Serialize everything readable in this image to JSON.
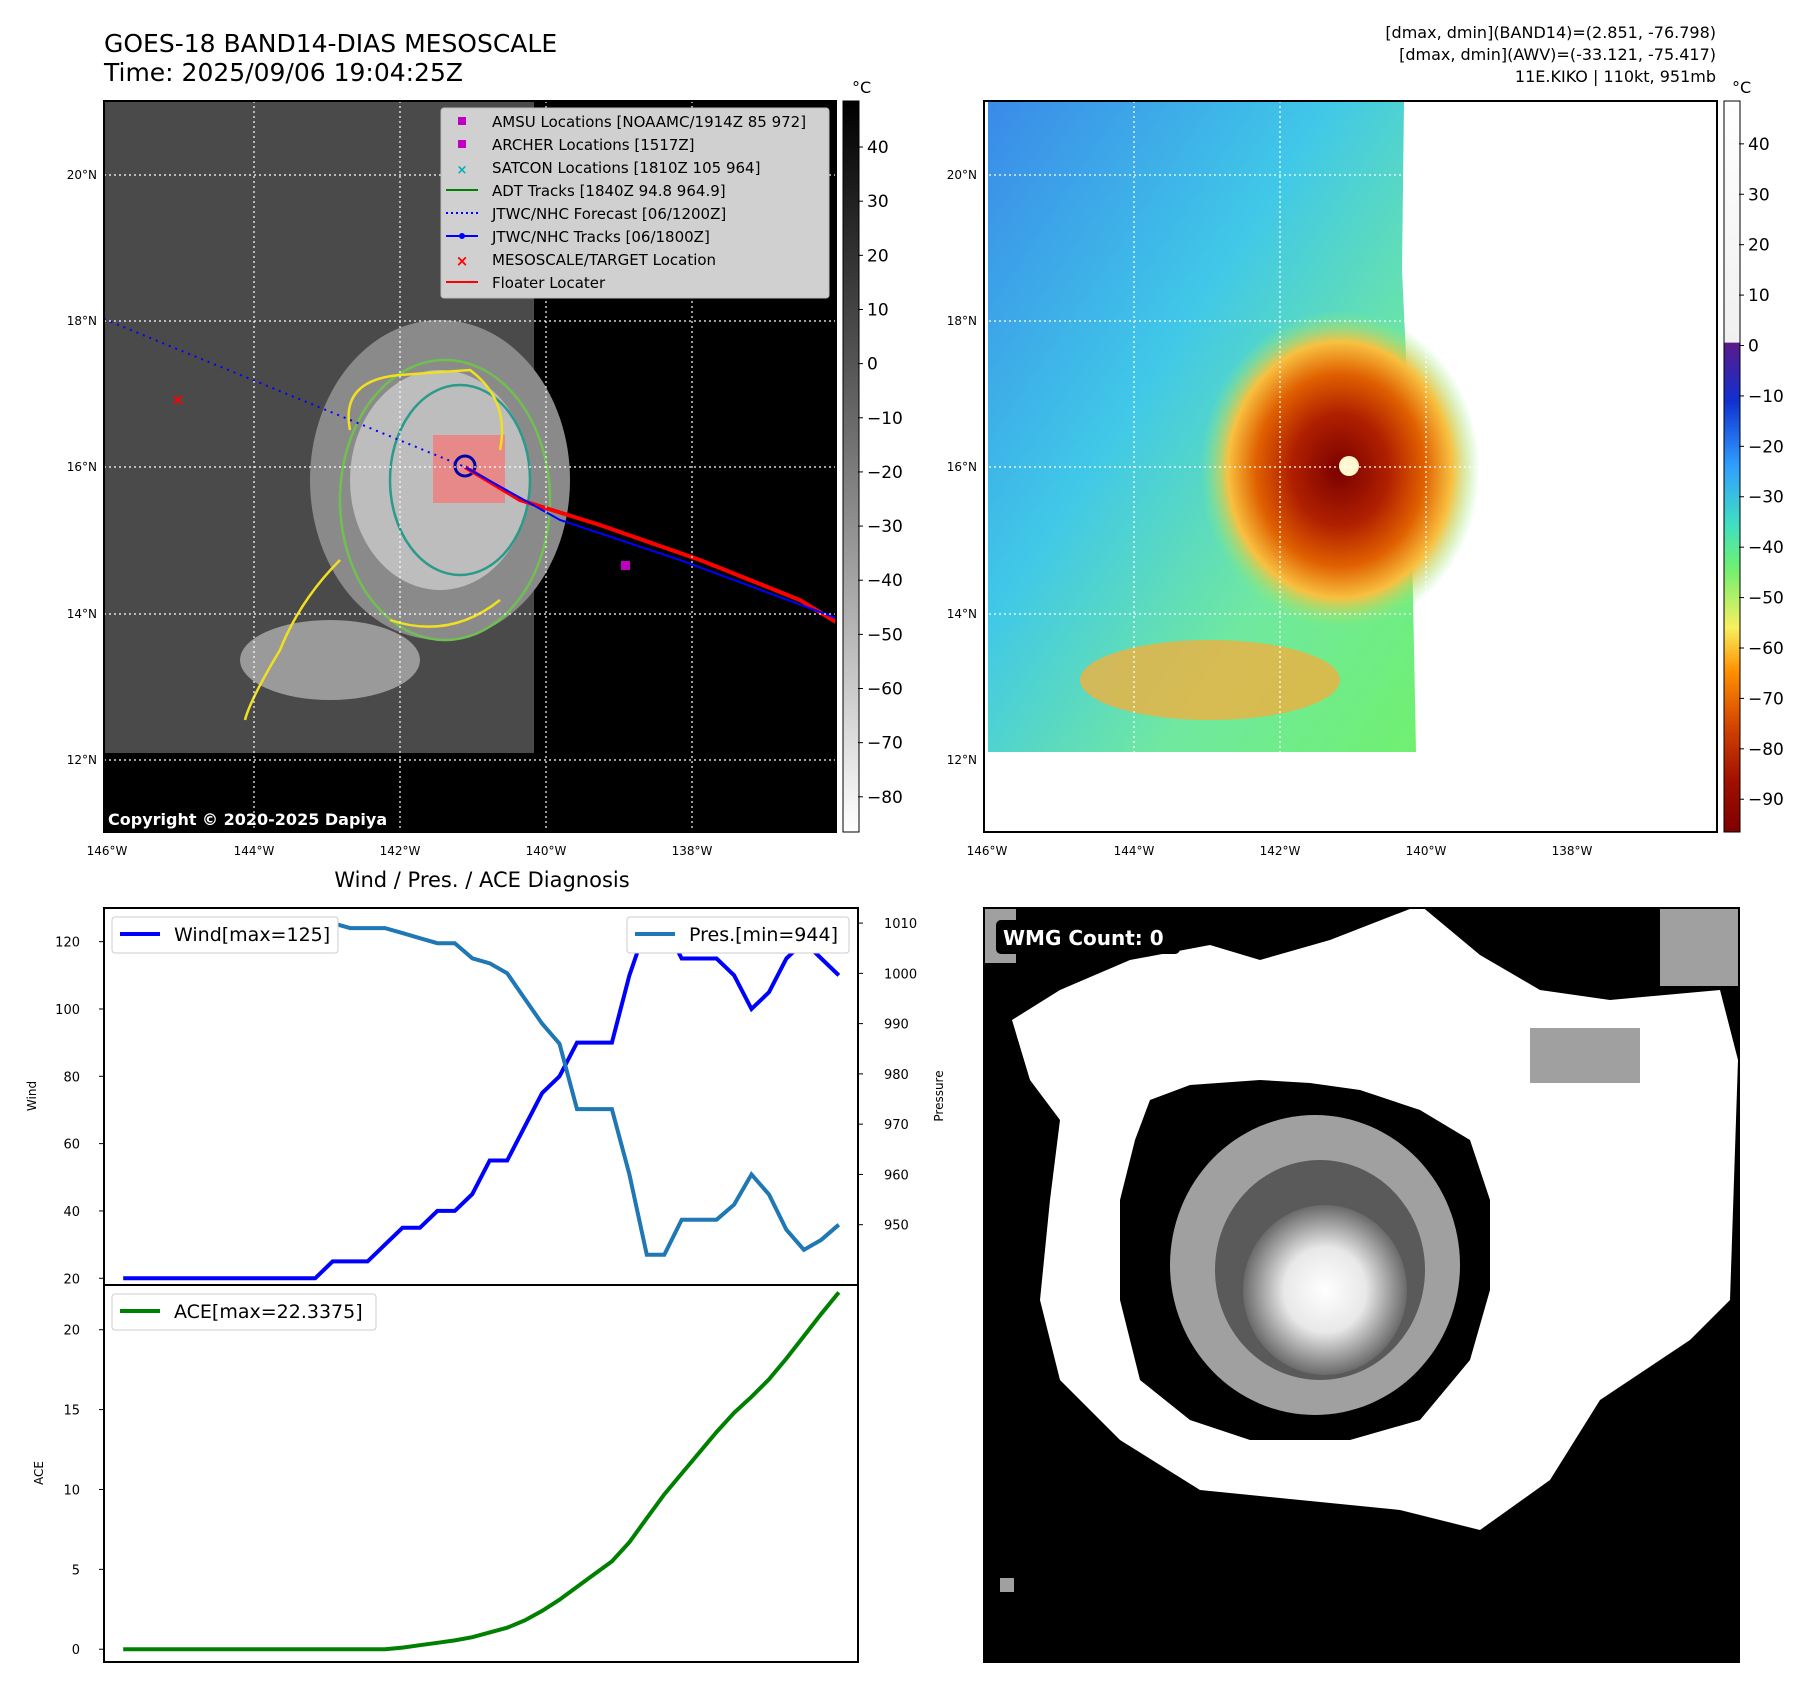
{
  "header": {
    "title": "GOES-18 BAND14-DIAS MESOSCALE",
    "time": "Time: 2025/09/06 19:04:25Z",
    "stats_line1": "[dmax, dmin](BAND14)=(2.851, -76.798)",
    "stats_line2": "[dmax, dmin](AWV)=(-33.121, -75.417)",
    "storm_line": "11E.KIKO | 110kt, 951mb"
  },
  "map_panel": {
    "copyright": "Copyright © 2020-2025 Dapiya",
    "lat_labels": [
      "20°N",
      "18°N",
      "16°N",
      "14°N",
      "12°N"
    ],
    "lon_labels": [
      "146°W",
      "144°W",
      "142°W",
      "140°W",
      "138°W"
    ],
    "legend": [
      {
        "label": "AMSU Locations [NOAAMC/1914Z 85 972]",
        "color": "#c000c0",
        "marker": "square"
      },
      {
        "label": "ARCHER Locations [1517Z]",
        "color": "#c000c0",
        "marker": "square"
      },
      {
        "label": "SATCON Locations [1810Z 105 964]",
        "color": "#00b0b0",
        "marker": "x"
      },
      {
        "label": "ADT Tracks [1840Z 94.8 964.9]",
        "color": "#008000",
        "marker": "line"
      },
      {
        "label": "JTWC/NHC Forecast [06/1200Z]",
        "color": "#0000ff",
        "marker": "dotted"
      },
      {
        "label": "JTWC/NHC Tracks [06/1800Z]",
        "color": "#0000ff",
        "marker": "line-dot"
      },
      {
        "label": "MESOSCALE/TARGET Location",
        "color": "#ff0000",
        "marker": "x"
      },
      {
        "label": "Floater Locater",
        "color": "#ff0000",
        "marker": "line"
      }
    ]
  },
  "colorbar_gray": {
    "unit": "°C",
    "ticks": [
      "40",
      "30",
      "20",
      "10",
      "0",
      "−10",
      "−20",
      "−30",
      "−40",
      "−50",
      "−60",
      "−70",
      "−80"
    ]
  },
  "colorbar_color": {
    "unit": "°C",
    "ticks": [
      "40",
      "30",
      "20",
      "10",
      "0",
      "−10",
      "−20",
      "−30",
      "−40",
      "−50",
      "−60",
      "−70",
      "−80",
      "−90"
    ]
  },
  "wmg_panel": {
    "label": "WMG Count: 0"
  },
  "chart_data": [
    {
      "type": "line",
      "title": "Wind / Pres. / ACE Diagnosis",
      "ylabel": "Wind",
      "y2label": "Pressure",
      "ylim": [
        18,
        130
      ],
      "y2lim": [
        938,
        1013
      ],
      "yticks": [
        20,
        40,
        60,
        80,
        100,
        120
      ],
      "y2ticks": [
        950,
        960,
        970,
        980,
        990,
        1000,
        1010
      ],
      "x": [
        0,
        1,
        2,
        3,
        4,
        5,
        6,
        7,
        8,
        9,
        10,
        11,
        12,
        13,
        14,
        15,
        16,
        17,
        18,
        19,
        20,
        21,
        22,
        23,
        24,
        25,
        26,
        27,
        28,
        29,
        30,
        31,
        32,
        33,
        34,
        35,
        36,
        37,
        38,
        39,
        40,
        41
      ],
      "series": [
        {
          "name": "Wind[max=125]",
          "axis": "left",
          "color": "#0000ff",
          "values": [
            20,
            20,
            20,
            20,
            20,
            20,
            20,
            20,
            20,
            20,
            20,
            20,
            25,
            25,
            25,
            30,
            35,
            35,
            40,
            40,
            45,
            55,
            55,
            65,
            75,
            80,
            90,
            90,
            90,
            110,
            125,
            125,
            115,
            115,
            115,
            110,
            100,
            105,
            115,
            120,
            115,
            110
          ]
        },
        {
          "name": "Pres.[min=944]",
          "axis": "right",
          "color": "#1f77b4",
          "values": [
            1010,
            1010,
            1010,
            1010,
            1010,
            1010,
            1010,
            1010,
            1010,
            1010,
            1010,
            1010,
            1010,
            1009,
            1009,
            1009,
            1008,
            1007,
            1006,
            1006,
            1003,
            1002,
            1000,
            995,
            990,
            986,
            973,
            973,
            973,
            960,
            944,
            944,
            951,
            951,
            951,
            954,
            960,
            956,
            949,
            945,
            947,
            950
          ]
        }
      ]
    },
    {
      "type": "line",
      "ylabel": "ACE",
      "ylim": [
        -0.8,
        22.8
      ],
      "yticks": [
        0,
        5,
        10,
        15,
        20
      ],
      "x": [
        0,
        1,
        2,
        3,
        4,
        5,
        6,
        7,
        8,
        9,
        10,
        11,
        12,
        13,
        14,
        15,
        16,
        17,
        18,
        19,
        20,
        21,
        22,
        23,
        24,
        25,
        26,
        27,
        28,
        29,
        30,
        31,
        32,
        33,
        34,
        35,
        36,
        37,
        38,
        39,
        40,
        41
      ],
      "series": [
        {
          "name": "ACE[max=22.3375]",
          "color": "#008000",
          "values": [
            0,
            0,
            0,
            0,
            0,
            0,
            0,
            0,
            0,
            0,
            0,
            0,
            0,
            0,
            0,
            0,
            0.1,
            0.25,
            0.4,
            0.55,
            0.75,
            1.05,
            1.35,
            1.8,
            2.4,
            3.1,
            3.9,
            4.7,
            5.5,
            6.7,
            8.2,
            9.7,
            11.0,
            12.3,
            13.6,
            14.8,
            15.8,
            16.9,
            18.2,
            19.6,
            21.0,
            22.3375
          ]
        }
      ]
    }
  ]
}
